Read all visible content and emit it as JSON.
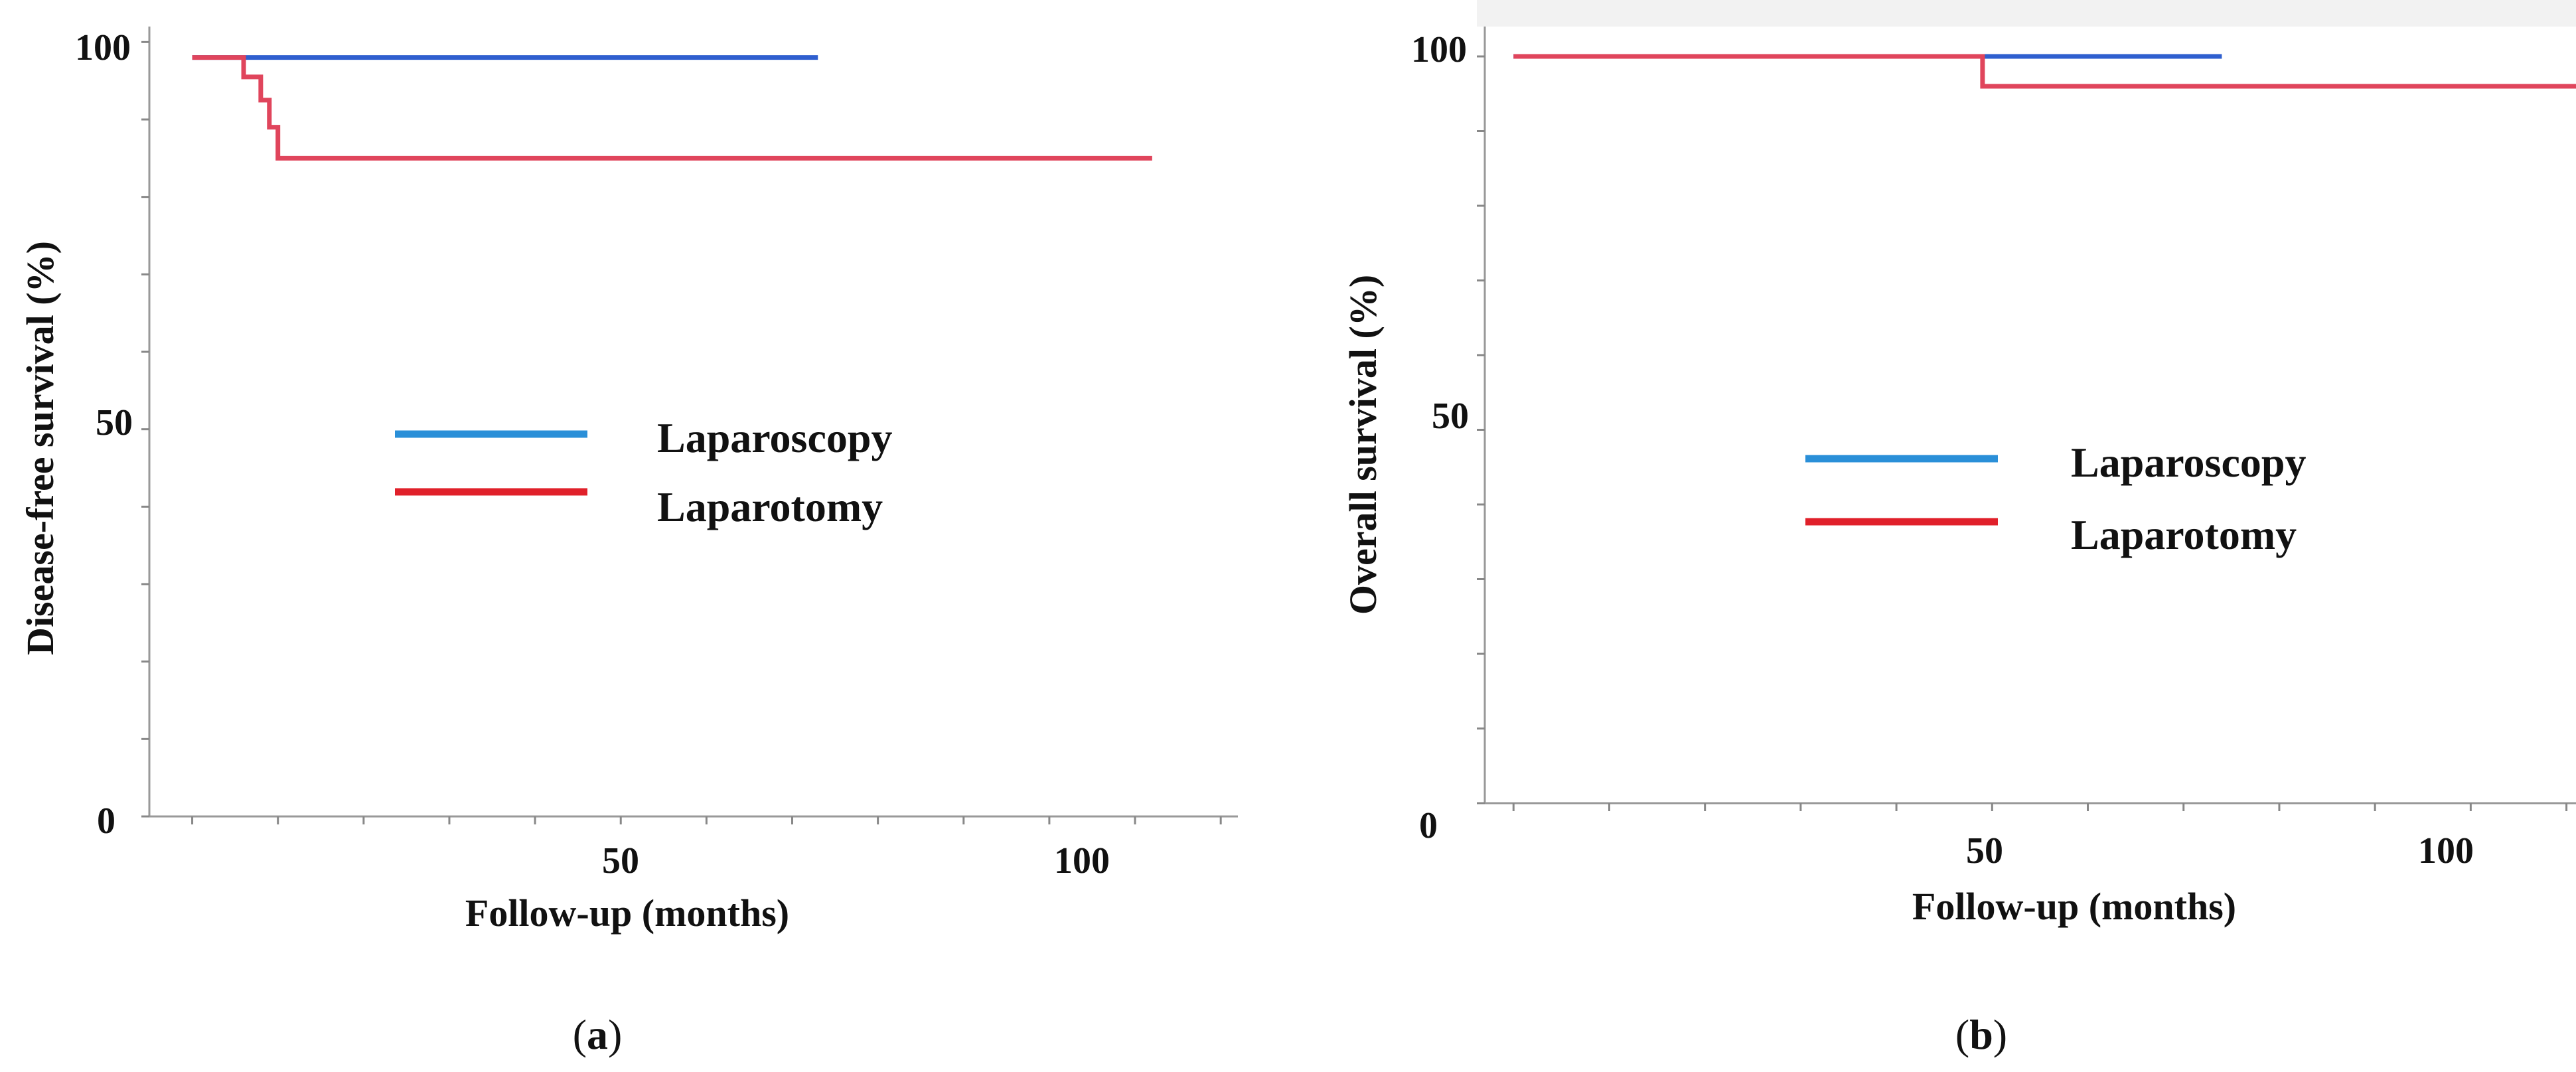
{
  "chart_data": [
    {
      "type": "line",
      "step": true,
      "panel_label": "a",
      "ylabel": "Disease-free survival (%)",
      "xlabel": "Follow-up (months)",
      "xlim": [
        -5,
        122
      ],
      "ylim": [
        0,
        102
      ],
      "x_tick_labels": [
        50,
        100
      ],
      "y_tick_labels": [
        0,
        50,
        100
      ],
      "legend_position": "center",
      "series": [
        {
          "name": "Laparoscopy",
          "color": "#2f5fcf",
          "legend_color": "#2a8fd8",
          "points": [
            [
              0,
              98
            ],
            [
              73,
              98
            ]
          ]
        },
        {
          "name": "Laparotomy",
          "color": "#e0455c",
          "legend_color": "#e0202a",
          "points": [
            [
              0,
              98
            ],
            [
              6,
              98
            ],
            [
              6,
              95.5
            ],
            [
              8,
              95.5
            ],
            [
              8,
              92.5
            ],
            [
              9,
              92.5
            ],
            [
              9,
              89
            ],
            [
              10,
              89
            ],
            [
              10,
              85
            ],
            [
              112,
              85
            ]
          ]
        }
      ]
    },
    {
      "type": "line",
      "step": true,
      "panel_label": "b",
      "ylabel": "Overall survival (%)",
      "xlabel": "Follow-up (months)",
      "xlim": [
        -3,
        111
      ],
      "ylim": [
        0,
        104
      ],
      "x_tick_labels": [
        50,
        100
      ],
      "y_tick_labels": [
        0,
        50,
        100
      ],
      "legend_position": "center",
      "series": [
        {
          "name": "Laparoscopy",
          "color": "#2f5fcf",
          "legend_color": "#2a8fd8",
          "points": [
            [
              0,
              100
            ],
            [
              74,
              100
            ]
          ]
        },
        {
          "name": "Laparotomy",
          "color": "#e0455c",
          "legend_color": "#e0202a",
          "points": [
            [
              0,
              100
            ],
            [
              49,
              100
            ],
            [
              49,
              96
            ],
            [
              115,
              96
            ]
          ]
        }
      ]
    }
  ]
}
